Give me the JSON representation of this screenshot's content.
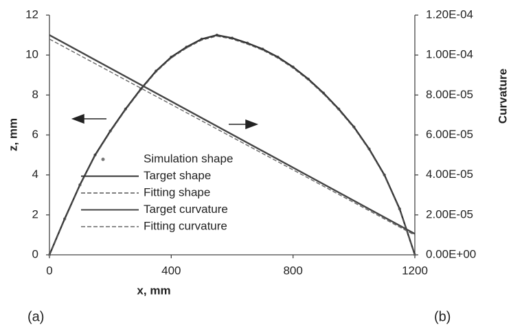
{
  "chart_data": {
    "type": "line",
    "xlabel": "x, mm",
    "ylabel": "z, mm",
    "y2label": "Curvature",
    "annotations": [
      "(a)",
      "(b)"
    ],
    "x": [
      0,
      50,
      100,
      150,
      200,
      250,
      300,
      350,
      400,
      450,
      500,
      550,
      600,
      650,
      700,
      750,
      800,
      850,
      900,
      950,
      1000,
      1050,
      1100,
      1150,
      1200
    ],
    "xlim": [
      0,
      1200
    ],
    "xticks": [
      0,
      400,
      800,
      1200
    ],
    "ylim": [
      0,
      12
    ],
    "yticks": [
      0,
      2,
      4,
      6,
      8,
      10,
      12
    ],
    "y2lim": [
      0,
      0.00012
    ],
    "y2ticks": [
      {
        "value": 0,
        "label": "0.00E+00"
      },
      {
        "value": 2e-05,
        "label": "2.00E-05"
      },
      {
        "value": 4e-05,
        "label": "4.00E-05"
      },
      {
        "value": 6e-05,
        "label": "6.00E-05"
      },
      {
        "value": 8e-05,
        "label": "8.00E-05"
      },
      {
        "value": 0.0001,
        "label": "1.00E-04"
      },
      {
        "value": 0.00012,
        "label": "1.20E-04"
      }
    ],
    "legend": "center",
    "series": [
      {
        "name": "Simulation shape",
        "color": "#777777",
        "style": "marker",
        "values": [
          0,
          1.8,
          3.5,
          5.0,
          6.2,
          7.3,
          8.3,
          9.2,
          9.9,
          10.4,
          10.8,
          11.0,
          10.85,
          10.6,
          10.3,
          9.9,
          9.4,
          8.8,
          8.1,
          7.3,
          6.4,
          5.3,
          4.0,
          2.3,
          0
        ]
      },
      {
        "name": "Target shape",
        "color": "#333333",
        "style": "solid",
        "values": [
          0,
          1.8,
          3.5,
          5.0,
          6.2,
          7.3,
          8.3,
          9.2,
          9.9,
          10.4,
          10.8,
          11.0,
          10.85,
          10.6,
          10.3,
          9.9,
          9.4,
          8.8,
          8.1,
          7.3,
          6.4,
          5.3,
          4.0,
          2.3,
          0
        ]
      },
      {
        "name": "Fitting shape",
        "color": "#555555",
        "style": "dashed",
        "values": [
          0,
          1.75,
          3.45,
          4.95,
          6.15,
          7.25,
          8.25,
          9.15,
          9.85,
          10.35,
          10.75,
          10.95,
          10.8,
          10.55,
          10.25,
          9.85,
          9.35,
          8.75,
          8.05,
          7.25,
          6.35,
          5.25,
          3.95,
          2.25,
          0
        ]
      },
      {
        "name": "Target curvature",
        "color": "#444444",
        "style": "solid",
        "axis": "y2",
        "x": [
          0,
          1200
        ],
        "values": [
          0.00011,
          1.05e-05
        ]
      },
      {
        "name": "Fitting curvature",
        "color": "#666666",
        "style": "dashed",
        "axis": "y2",
        "x": [
          0,
          1200
        ],
        "values": [
          0.000108,
          9.8e-06
        ]
      }
    ]
  }
}
